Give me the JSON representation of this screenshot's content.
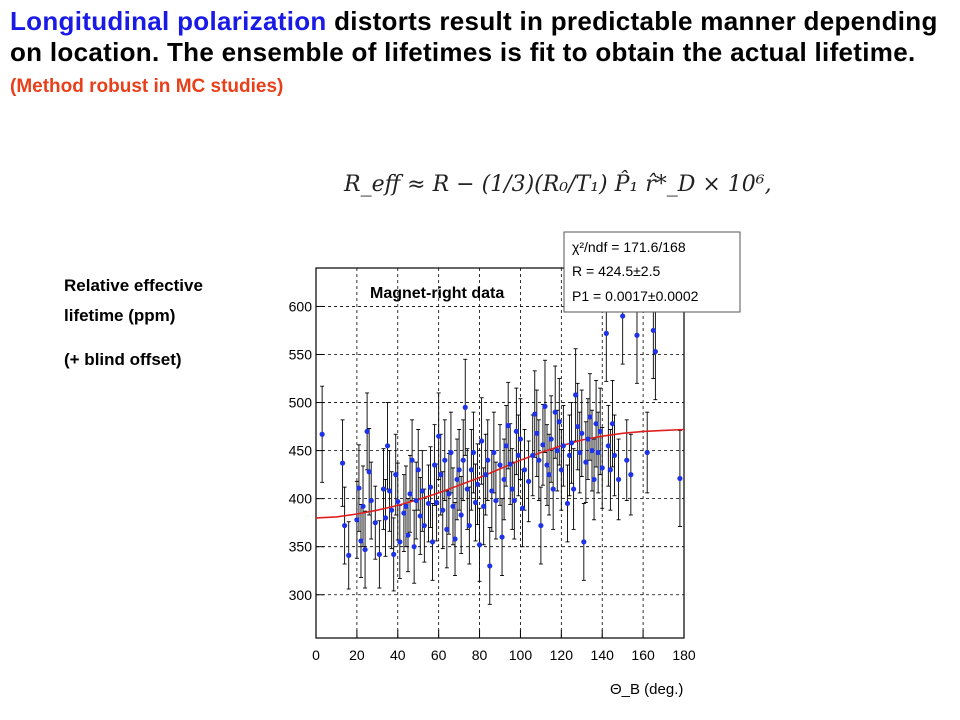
{
  "headline": {
    "highlight": "Longitudinal polarization",
    "rest": " distorts result in predictable manner depending on location. The ensemble of lifetimes is fit to obtain the actual lifetime.",
    "note": "(Method robust in MC studies)",
    "highlight_color": "#1a1ae6",
    "note_color": "#e8401a"
  },
  "formula": "R_eff ≈ R − (1/3)(R₀/T₁) P̂₁ r̂*_D × 10⁶,",
  "side_label": {
    "line1": "Relative effective",
    "line2": "lifetime (ppm)",
    "line3": "(+ blind offset)"
  },
  "chart_data": {
    "type": "scatter",
    "title": "Magnet-right data",
    "xlabel": "Θ_B (deg.)",
    "ylabel": "",
    "xlim": [
      0,
      180
    ],
    "ylim": [
      255,
      640
    ],
    "xticks": [
      0,
      20,
      40,
      60,
      80,
      100,
      120,
      140,
      160,
      180
    ],
    "yticks": [
      300,
      350,
      400,
      450,
      500,
      550,
      600
    ],
    "grid": true,
    "marker_color": "#1e32e6",
    "fit_color": "#e02020",
    "fit": {
      "x": [
        0,
        10,
        20,
        30,
        40,
        50,
        60,
        70,
        80,
        90,
        100,
        110,
        120,
        130,
        140,
        150,
        160,
        170,
        180
      ],
      "y": [
        380,
        381,
        384,
        388,
        393,
        399,
        406,
        414,
        422,
        431,
        440,
        448,
        455,
        461,
        465,
        468,
        470,
        471,
        472
      ]
    },
    "stats": {
      "chi2": "χ²/ndf =  171.6/168",
      "R": "R = 424.5±2.5",
      "P1": "P1 = 0.0017±0.0002"
    },
    "points": [
      {
        "x": 3,
        "y": 467,
        "e": 50
      },
      {
        "x": 13,
        "y": 437,
        "e": 45
      },
      {
        "x": 14,
        "y": 372,
        "e": 40
      },
      {
        "x": 16,
        "y": 341,
        "e": 35
      },
      {
        "x": 20,
        "y": 378,
        "e": 40
      },
      {
        "x": 21,
        "y": 411,
        "e": 45
      },
      {
        "x": 22,
        "y": 356,
        "e": 38
      },
      {
        "x": 23,
        "y": 392,
        "e": 42
      },
      {
        "x": 24,
        "y": 347,
        "e": 40
      },
      {
        "x": 25,
        "y": 470,
        "e": 40
      },
      {
        "x": 26,
        "y": 428,
        "e": 45
      },
      {
        "x": 27,
        "y": 398,
        "e": 40
      },
      {
        "x": 29,
        "y": 375,
        "e": 38
      },
      {
        "x": 31,
        "y": 342,
        "e": 35
      },
      {
        "x": 33,
        "y": 410,
        "e": 42
      },
      {
        "x": 34,
        "y": 380,
        "e": 40
      },
      {
        "x": 35,
        "y": 455,
        "e": 45
      },
      {
        "x": 36,
        "y": 408,
        "e": 42
      },
      {
        "x": 37,
        "y": 388,
        "e": 40
      },
      {
        "x": 38,
        "y": 342,
        "e": 38
      },
      {
        "x": 39,
        "y": 425,
        "e": 42
      },
      {
        "x": 40,
        "y": 397,
        "e": 40
      },
      {
        "x": 41,
        "y": 355,
        "e": 38
      },
      {
        "x": 43,
        "y": 385,
        "e": 40
      },
      {
        "x": 44,
        "y": 392,
        "e": 42
      },
      {
        "x": 45,
        "y": 362,
        "e": 38
      },
      {
        "x": 46,
        "y": 405,
        "e": 40
      },
      {
        "x": 47,
        "y": 440,
        "e": 42
      },
      {
        "x": 48,
        "y": 350,
        "e": 38
      },
      {
        "x": 49,
        "y": 398,
        "e": 40
      },
      {
        "x": 50,
        "y": 430,
        "e": 42
      },
      {
        "x": 51,
        "y": 382,
        "e": 40
      },
      {
        "x": 52,
        "y": 408,
        "e": 42
      },
      {
        "x": 53,
        "y": 372,
        "e": 38
      },
      {
        "x": 55,
        "y": 395,
        "e": 40
      },
      {
        "x": 56,
        "y": 412,
        "e": 42
      },
      {
        "x": 57,
        "y": 355,
        "e": 40
      },
      {
        "x": 58,
        "y": 435,
        "e": 42
      },
      {
        "x": 59,
        "y": 396,
        "e": 40
      },
      {
        "x": 60,
        "y": 465,
        "e": 45
      },
      {
        "x": 61,
        "y": 425,
        "e": 42
      },
      {
        "x": 62,
        "y": 388,
        "e": 40
      },
      {
        "x": 63,
        "y": 440,
        "e": 42
      },
      {
        "x": 64,
        "y": 368,
        "e": 40
      },
      {
        "x": 65,
        "y": 405,
        "e": 42
      },
      {
        "x": 66,
        "y": 448,
        "e": 42
      },
      {
        "x": 67,
        "y": 392,
        "e": 40
      },
      {
        "x": 68,
        "y": 358,
        "e": 38
      },
      {
        "x": 69,
        "y": 420,
        "e": 42
      },
      {
        "x": 70,
        "y": 430,
        "e": 42
      },
      {
        "x": 71,
        "y": 383,
        "e": 40
      },
      {
        "x": 72,
        "y": 440,
        "e": 42
      },
      {
        "x": 73,
        "y": 495,
        "e": 50
      },
      {
        "x": 74,
        "y": 410,
        "e": 42
      },
      {
        "x": 75,
        "y": 372,
        "e": 40
      },
      {
        "x": 76,
        "y": 430,
        "e": 42
      },
      {
        "x": 77,
        "y": 448,
        "e": 42
      },
      {
        "x": 78,
        "y": 396,
        "e": 40
      },
      {
        "x": 79,
        "y": 415,
        "e": 42
      },
      {
        "x": 80,
        "y": 352,
        "e": 38
      },
      {
        "x": 81,
        "y": 460,
        "e": 45
      },
      {
        "x": 82,
        "y": 392,
        "e": 40
      },
      {
        "x": 83,
        "y": 425,
        "e": 42
      },
      {
        "x": 84,
        "y": 440,
        "e": 42
      },
      {
        "x": 85,
        "y": 330,
        "e": 40
      },
      {
        "x": 86,
        "y": 408,
        "e": 42
      },
      {
        "x": 87,
        "y": 448,
        "e": 42
      },
      {
        "x": 88,
        "y": 398,
        "e": 40
      },
      {
        "x": 90,
        "y": 435,
        "e": 42
      },
      {
        "x": 91,
        "y": 360,
        "e": 40
      },
      {
        "x": 92,
        "y": 420,
        "e": 42
      },
      {
        "x": 93,
        "y": 455,
        "e": 42
      },
      {
        "x": 94,
        "y": 476,
        "e": 45
      },
      {
        "x": 95,
        "y": 436,
        "e": 42
      },
      {
        "x": 96,
        "y": 410,
        "e": 42
      },
      {
        "x": 97,
        "y": 398,
        "e": 40
      },
      {
        "x": 98,
        "y": 470,
        "e": 45
      },
      {
        "x": 99,
        "y": 445,
        "e": 42
      },
      {
        "x": 100,
        "y": 462,
        "e": 42
      },
      {
        "x": 101,
        "y": 390,
        "e": 40
      },
      {
        "x": 102,
        "y": 430,
        "e": 42
      },
      {
        "x": 104,
        "y": 418,
        "e": 42
      },
      {
        "x": 106,
        "y": 445,
        "e": 42
      },
      {
        "x": 107,
        "y": 488,
        "e": 45
      },
      {
        "x": 108,
        "y": 468,
        "e": 45
      },
      {
        "x": 109,
        "y": 440,
        "e": 42
      },
      {
        "x": 110,
        "y": 372,
        "e": 40
      },
      {
        "x": 111,
        "y": 456,
        "e": 42
      },
      {
        "x": 112,
        "y": 496,
        "e": 48
      },
      {
        "x": 113,
        "y": 435,
        "e": 42
      },
      {
        "x": 114,
        "y": 425,
        "e": 42
      },
      {
        "x": 115,
        "y": 462,
        "e": 45
      },
      {
        "x": 116,
        "y": 410,
        "e": 42
      },
      {
        "x": 117,
        "y": 490,
        "e": 48
      },
      {
        "x": 118,
        "y": 450,
        "e": 42
      },
      {
        "x": 119,
        "y": 480,
        "e": 45
      },
      {
        "x": 120,
        "y": 430,
        "e": 42
      },
      {
        "x": 121,
        "y": 455,
        "e": 42
      },
      {
        "x": 123,
        "y": 395,
        "e": 40
      },
      {
        "x": 124,
        "y": 445,
        "e": 42
      },
      {
        "x": 125,
        "y": 458,
        "e": 42
      },
      {
        "x": 126,
        "y": 410,
        "e": 42
      },
      {
        "x": 127,
        "y": 508,
        "e": 48
      },
      {
        "x": 128,
        "y": 475,
        "e": 45
      },
      {
        "x": 129,
        "y": 448,
        "e": 42
      },
      {
        "x": 130,
        "y": 468,
        "e": 45
      },
      {
        "x": 131,
        "y": 355,
        "e": 40
      },
      {
        "x": 132,
        "y": 438,
        "e": 42
      },
      {
        "x": 133,
        "y": 462,
        "e": 42
      },
      {
        "x": 134,
        "y": 485,
        "e": 45
      },
      {
        "x": 135,
        "y": 450,
        "e": 42
      },
      {
        "x": 136,
        "y": 420,
        "e": 42
      },
      {
        "x": 137,
        "y": 478,
        "e": 45
      },
      {
        "x": 138,
        "y": 448,
        "e": 42
      },
      {
        "x": 139,
        "y": 470,
        "e": 45
      },
      {
        "x": 140,
        "y": 432,
        "e": 42
      },
      {
        "x": 142,
        "y": 572,
        "e": 50
      },
      {
        "x": 143,
        "y": 455,
        "e": 42
      },
      {
        "x": 144,
        "y": 430,
        "e": 42
      },
      {
        "x": 145,
        "y": 478,
        "e": 45
      },
      {
        "x": 146,
        "y": 445,
        "e": 42
      },
      {
        "x": 148,
        "y": 420,
        "e": 42
      },
      {
        "x": 150,
        "y": 590,
        "e": 50
      },
      {
        "x": 152,
        "y": 440,
        "e": 42
      },
      {
        "x": 154,
        "y": 425,
        "e": 42
      },
      {
        "x": 157,
        "y": 570,
        "e": 50
      },
      {
        "x": 162,
        "y": 448,
        "e": 42
      },
      {
        "x": 165,
        "y": 575,
        "e": 50
      },
      {
        "x": 166,
        "y": 553,
        "e": 50
      },
      {
        "x": 178,
        "y": 421,
        "e": 50
      }
    ]
  }
}
